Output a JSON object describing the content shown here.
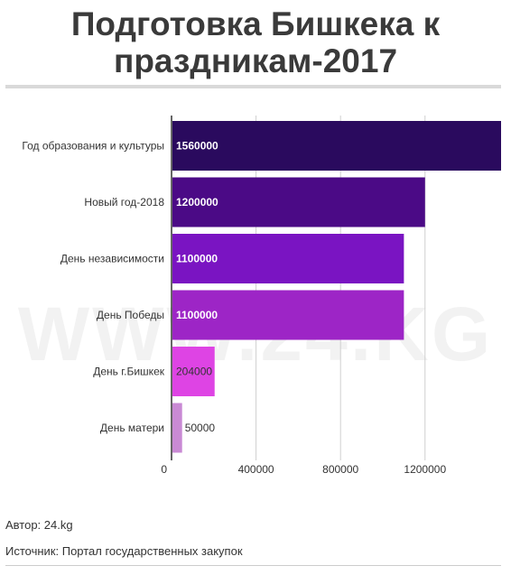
{
  "header": {
    "title_line1": "Подготовка Бишкека к",
    "title_line2": "праздникам-2017"
  },
  "watermark": "WWW.24.KG",
  "footer": {
    "author": "Автор: 24.kg",
    "source": "Источник: Портал государственных закупок"
  },
  "chart_data": {
    "type": "bar",
    "orientation": "horizontal",
    "categories": [
      "Год образования и культуры",
      "Новый год-2018",
      "День независимости",
      "День Победы",
      "День г.Бишкек",
      "День матери"
    ],
    "values": [
      1560000,
      1200000,
      1100000,
      1100000,
      204000,
      50000
    ],
    "value_labels": [
      "1560000",
      "1200000",
      "1100000",
      "1100000",
      "204000",
      "50000"
    ],
    "colors": [
      "#2a0a5e",
      "#4b0a86",
      "#7a14c2",
      "#9d25c6",
      "#de44e4",
      "#c98ad4"
    ],
    "xticks": [
      0,
      400000,
      800000,
      1200000
    ],
    "xtick_labels": [
      "0",
      "400000",
      "800000",
      "1200000"
    ],
    "xlim": [
      0,
      1560000
    ],
    "grid": true,
    "title": "",
    "xlabel": "",
    "ylabel": ""
  }
}
